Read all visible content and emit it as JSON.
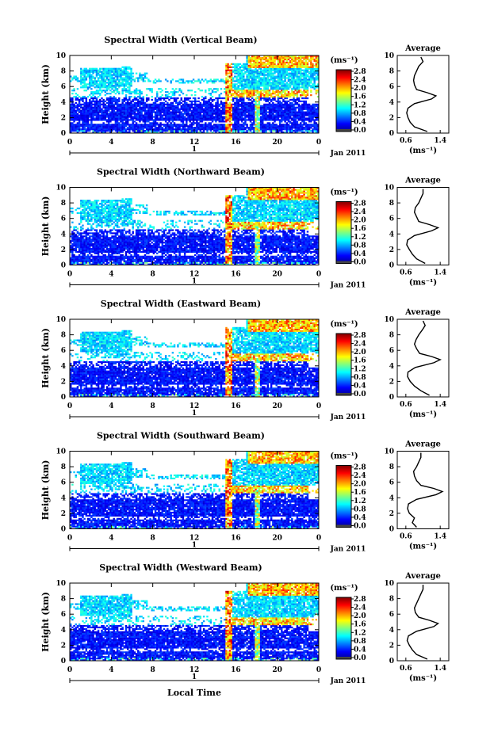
{
  "chart_data": {
    "type": "heatmap",
    "xlabel": "Local Time",
    "date_label": "Jan 2011",
    "day_label": "1",
    "x_ticks": [
      "0",
      "4",
      "8",
      "12",
      "16",
      "20",
      "0"
    ],
    "y_ticks": [
      "0",
      "2",
      "4",
      "6",
      "8",
      "10"
    ],
    "ylabel": "Height (km)",
    "colorbar_unit": "(ms⁻¹)",
    "colorbar_ticks": [
      "0.0",
      "0.4",
      "0.8",
      "1.2",
      "1.6",
      "2.0",
      "2.4",
      "2.8"
    ],
    "avg_title": "Average",
    "avg_xlabel": "(ms⁻¹)",
    "avg_ticks": [
      "0.6",
      "1.4"
    ],
    "xlim_hours": [
      0,
      24
    ],
    "ylim_km": [
      0,
      10
    ],
    "colorbar_range": [
      0.0,
      2.8
    ],
    "avg_xlim": [
      0.4,
      1.6
    ],
    "panels": [
      {
        "title": "Spectral Width (Vertical Beam)",
        "average_profile": {
          "height_km": [
            0.2,
            0.8,
            1.4,
            2.0,
            2.6,
            3.2,
            3.8,
            4.4,
            4.8,
            5.2,
            5.6,
            6.2,
            6.8,
            7.4,
            8.0,
            8.6,
            9.2,
            9.8
          ],
          "width_ms": [
            1.1,
            0.8,
            0.7,
            0.65,
            0.62,
            0.65,
            0.8,
            1.2,
            1.3,
            1.1,
            0.85,
            0.8,
            0.78,
            0.8,
            0.85,
            0.9,
            1.0,
            0.95
          ]
        }
      },
      {
        "title": "Spectral Width (Northward Beam)",
        "average_profile": {
          "height_km": [
            0.2,
            0.8,
            1.4,
            2.0,
            2.6,
            3.2,
            3.8,
            4.4,
            4.8,
            5.2,
            5.6,
            6.2,
            6.8,
            7.4,
            8.0,
            8.6,
            9.2,
            9.8
          ],
          "width_ms": [
            1.05,
            0.85,
            0.75,
            0.68,
            0.62,
            0.64,
            0.8,
            1.2,
            1.35,
            1.15,
            0.9,
            0.85,
            0.8,
            0.82,
            0.9,
            0.95,
            1.0,
            1.0
          ]
        }
      },
      {
        "title": "Spectral Width (Eastward Beam)",
        "average_profile": {
          "height_km": [
            0.2,
            0.8,
            1.4,
            2.0,
            2.6,
            3.2,
            3.8,
            4.4,
            4.8,
            5.2,
            5.6,
            6.2,
            6.8,
            7.4,
            8.0,
            8.6,
            9.2,
            9.8
          ],
          "width_ms": [
            1.15,
            0.95,
            0.8,
            0.7,
            0.64,
            0.65,
            0.82,
            1.25,
            1.4,
            1.2,
            0.92,
            0.85,
            0.8,
            0.84,
            0.9,
            0.98,
            1.05,
            1.0
          ]
        }
      },
      {
        "title": "Spectral Width (Southward Beam)",
        "average_profile": {
          "height_km": [
            0.2,
            0.8,
            1.4,
            2.0,
            2.6,
            3.2,
            3.8,
            4.4,
            4.8,
            5.2,
            5.6,
            6.2,
            6.8,
            7.4,
            8.0,
            8.6,
            9.2,
            9.8
          ],
          "width_ms": [
            0.85,
            0.75,
            0.8,
            0.68,
            0.64,
            0.66,
            0.85,
            1.3,
            1.45,
            1.25,
            0.95,
            0.85,
            0.8,
            0.78,
            0.85,
            0.9,
            0.95,
            0.95
          ]
        }
      },
      {
        "title": "Spectral Width (Westward Beam)",
        "average_profile": {
          "height_km": [
            0.2,
            0.8,
            1.4,
            2.0,
            2.6,
            3.2,
            3.8,
            4.4,
            4.8,
            5.2,
            5.6,
            6.2,
            6.8,
            7.4,
            8.0,
            8.6,
            9.2,
            9.8
          ],
          "width_ms": [
            1.1,
            0.85,
            0.75,
            0.68,
            0.63,
            0.66,
            0.85,
            1.25,
            1.35,
            1.15,
            0.9,
            0.82,
            0.8,
            0.85,
            0.9,
            0.95,
            1.0,
            1.0
          ]
        }
      }
    ]
  }
}
